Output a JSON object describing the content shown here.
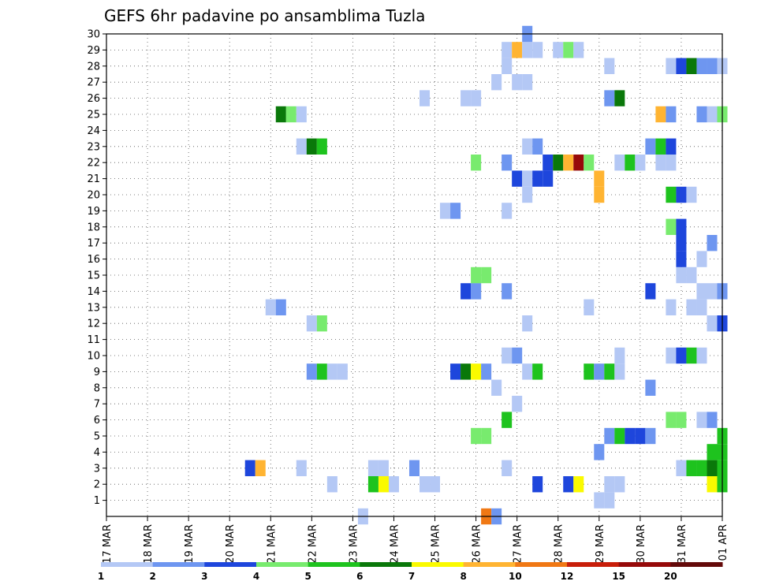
{
  "chart_data": {
    "type": "heatmap",
    "title": "GEFS 6hr padavine po ansamblima Tuzla",
    "x_ticks": [
      "17 MAR",
      "18 MAR",
      "19 MAR",
      "20 MAR",
      "21 MAR",
      "22 MAR",
      "23 MAR",
      "24 MAR",
      "25 MAR",
      "26 MAR",
      "27 MAR",
      "28 MAR",
      "29 MAR",
      "30 MAR",
      "31 MAR",
      "01 APR"
    ],
    "y_ticks": [
      "1",
      "2",
      "3",
      "4",
      "5",
      "6",
      "7",
      "8",
      "9",
      "10",
      "11",
      "12",
      "13",
      "14",
      "15",
      "16",
      "17",
      "18",
      "19",
      "20",
      "21",
      "22",
      "23",
      "24",
      "25",
      "26",
      "27",
      "28",
      "29",
      "30"
    ],
    "ylim": [
      0,
      30
    ],
    "x_steps_per_day": 4,
    "x_total_steps": 60,
    "grid": true,
    "colorbar": {
      "labels": [
        "1",
        "2",
        "3",
        "4",
        "5",
        "6",
        "7",
        "8",
        "10",
        "12",
        "15",
        "20"
      ],
      "colors": [
        "#b4c8f5",
        "#6e96f0",
        "#1e46dc",
        "#78eb6e",
        "#1ec31e",
        "#0a780a",
        "#fafa00",
        "#ffb432",
        "#f07814",
        "#c81e0a",
        "#960a0a",
        "#640a0a"
      ]
    },
    "cells": [
      [
        1,
        48,
        1
      ],
      [
        1,
        49,
        1
      ],
      [
        2,
        22,
        1
      ],
      [
        2,
        26,
        5
      ],
      [
        2,
        27,
        7
      ],
      [
        2,
        28,
        1
      ],
      [
        2,
        31,
        1
      ],
      [
        2,
        32,
        1
      ],
      [
        2,
        42,
        3
      ],
      [
        2,
        45,
        3
      ],
      [
        2,
        46,
        7
      ],
      [
        2,
        49,
        1
      ],
      [
        2,
        50,
        1
      ],
      [
        2,
        59,
        7
      ],
      [
        2,
        60,
        5
      ],
      [
        3,
        14,
        3
      ],
      [
        3,
        15,
        8
      ],
      [
        3,
        19,
        1
      ],
      [
        3,
        26,
        1
      ],
      [
        3,
        27,
        1
      ],
      [
        3,
        30,
        2
      ],
      [
        3,
        39,
        1
      ],
      [
        3,
        56,
        1
      ],
      [
        3,
        57,
        5
      ],
      [
        3,
        58,
        5
      ],
      [
        3,
        59,
        6
      ],
      [
        3,
        60,
        5
      ],
      [
        4,
        48,
        2
      ],
      [
        4,
        59,
        5
      ],
      [
        4,
        60,
        5
      ],
      [
        5,
        36,
        4
      ],
      [
        5,
        37,
        4
      ],
      [
        5,
        49,
        2
      ],
      [
        5,
        50,
        5
      ],
      [
        5,
        51,
        3
      ],
      [
        5,
        52,
        3
      ],
      [
        5,
        53,
        2
      ],
      [
        5,
        60,
        5
      ],
      [
        6,
        39,
        5
      ],
      [
        6,
        55,
        4
      ],
      [
        6,
        56,
        4
      ],
      [
        6,
        58,
        1
      ],
      [
        6,
        59,
        2
      ],
      [
        7,
        40,
        1
      ],
      [
        8,
        38,
        1
      ],
      [
        8,
        53,
        2
      ],
      [
        9,
        20,
        2
      ],
      [
        9,
        21,
        5
      ],
      [
        9,
        22,
        1
      ],
      [
        9,
        23,
        1
      ],
      [
        9,
        34,
        3
      ],
      [
        9,
        35,
        6
      ],
      [
        9,
        36,
        7
      ],
      [
        9,
        37,
        2
      ],
      [
        9,
        41,
        1
      ],
      [
        9,
        42,
        5
      ],
      [
        9,
        47,
        5
      ],
      [
        9,
        48,
        2
      ],
      [
        9,
        49,
        5
      ],
      [
        9,
        50,
        1
      ],
      [
        10,
        39,
        1
      ],
      [
        10,
        40,
        2
      ],
      [
        10,
        50,
        1
      ],
      [
        10,
        55,
        1
      ],
      [
        10,
        56,
        3
      ],
      [
        10,
        57,
        5
      ],
      [
        10,
        58,
        1
      ],
      [
        12,
        20,
        1
      ],
      [
        12,
        21,
        4
      ],
      [
        12,
        41,
        1
      ],
      [
        12,
        59,
        1
      ],
      [
        12,
        60,
        3
      ],
      [
        13,
        16,
        1
      ],
      [
        13,
        17,
        2
      ],
      [
        13,
        47,
        1
      ],
      [
        13,
        55,
        1
      ],
      [
        13,
        57,
        1
      ],
      [
        13,
        58,
        1
      ],
      [
        14,
        35,
        3
      ],
      [
        14,
        36,
        2
      ],
      [
        14,
        36,
        2
      ],
      [
        14,
        39,
        2
      ],
      [
        14,
        53,
        3
      ],
      [
        14,
        58,
        1
      ],
      [
        14,
        59,
        1
      ],
      [
        14,
        60,
        2
      ],
      [
        15,
        36,
        4
      ],
      [
        15,
        37,
        4
      ],
      [
        15,
        56,
        1
      ],
      [
        15,
        57,
        1
      ],
      [
        16,
        56,
        3
      ],
      [
        16,
        58,
        1
      ],
      [
        17,
        56,
        3
      ],
      [
        17,
        59,
        2
      ],
      [
        18,
        55,
        4
      ],
      [
        18,
        56,
        3
      ],
      [
        19,
        33,
        1
      ],
      [
        19,
        34,
        2
      ],
      [
        19,
        39,
        1
      ],
      [
        20,
        41,
        1
      ],
      [
        20,
        48,
        8
      ],
      [
        20,
        55,
        5
      ],
      [
        20,
        56,
        3
      ],
      [
        20,
        57,
        1
      ],
      [
        21,
        40,
        3
      ],
      [
        21,
        41,
        1
      ],
      [
        21,
        42,
        3
      ],
      [
        21,
        43,
        3
      ],
      [
        21,
        48,
        8
      ],
      [
        22,
        36,
        4
      ],
      [
        22,
        39,
        2
      ],
      [
        22,
        43,
        3
      ],
      [
        22,
        44,
        6
      ],
      [
        22,
        45,
        8
      ],
      [
        22,
        46,
        11
      ],
      [
        22,
        47,
        4
      ],
      [
        22,
        50,
        1
      ],
      [
        22,
        51,
        5
      ],
      [
        22,
        52,
        1
      ],
      [
        22,
        54,
        1
      ],
      [
        22,
        55,
        1
      ],
      [
        23,
        19,
        1
      ],
      [
        23,
        20,
        6
      ],
      [
        23,
        21,
        5
      ],
      [
        23,
        41,
        1
      ],
      [
        23,
        42,
        2
      ],
      [
        23,
        53,
        2
      ],
      [
        23,
        54,
        5
      ],
      [
        23,
        55,
        3
      ],
      [
        25,
        17,
        6
      ],
      [
        25,
        18,
        4
      ],
      [
        25,
        19,
        1
      ],
      [
        25,
        54,
        8
      ],
      [
        25,
        55,
        2
      ],
      [
        25,
        58,
        2
      ],
      [
        25,
        59,
        1
      ],
      [
        25,
        60,
        4
      ],
      [
        26,
        31,
        1
      ],
      [
        26,
        35,
        1
      ],
      [
        26,
        36,
        1
      ],
      [
        26,
        49,
        2
      ],
      [
        26,
        50,
        6
      ],
      [
        27,
        38,
        1
      ],
      [
        27,
        40,
        1
      ],
      [
        27,
        41,
        1
      ],
      [
        28,
        39,
        1
      ],
      [
        28,
        49,
        1
      ],
      [
        28,
        55,
        1
      ],
      [
        28,
        56,
        3
      ],
      [
        28,
        57,
        6
      ],
      [
        28,
        58,
        2
      ],
      [
        28,
        59,
        2
      ],
      [
        28,
        60,
        1
      ],
      [
        29,
        39,
        1
      ],
      [
        29,
        40,
        8
      ],
      [
        29,
        41,
        1
      ],
      [
        29,
        42,
        1
      ],
      [
        29,
        44,
        1
      ],
      [
        29,
        45,
        4
      ],
      [
        29,
        46,
        1
      ],
      [
        30,
        41,
        2
      ],
      [
        0,
        25,
        1
      ],
      [
        0,
        37,
        9
      ],
      [
        0,
        38,
        2
      ]
    ]
  }
}
